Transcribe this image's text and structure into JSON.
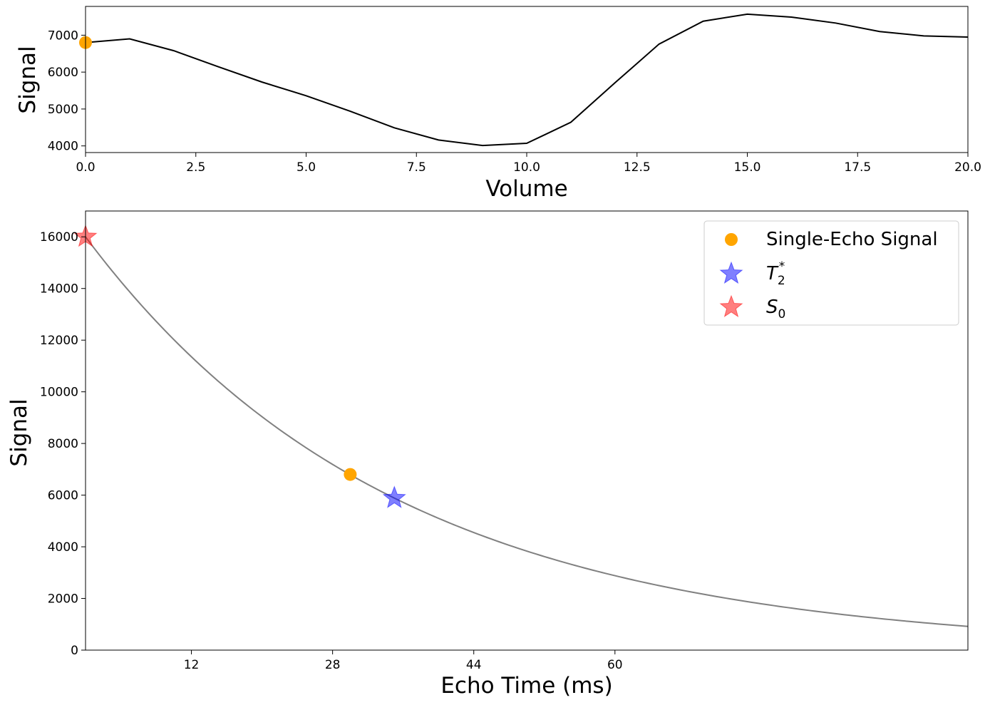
{
  "chart_data": [
    {
      "type": "line",
      "xlabel": "Volume",
      "ylabel": "Signal",
      "xlim": [
        0,
        20
      ],
      "ylim": [
        3820,
        7780
      ],
      "xticks": [
        0,
        2.5,
        5,
        7.5,
        10,
        12.5,
        15,
        17.5,
        20
      ],
      "xtick_labels": [
        "0.0",
        "2.5",
        "5.0",
        "7.5",
        "10.0",
        "12.5",
        "15.0",
        "17.5",
        "20.0"
      ],
      "yticks": [
        4000,
        5000,
        6000,
        7000
      ],
      "ytick_labels": [
        "4000",
        "5000",
        "6000",
        "7000"
      ],
      "grid": false,
      "series": [
        {
          "color": "#000000",
          "x": [
            0,
            1,
            2,
            3,
            4,
            5,
            6,
            7,
            8,
            9,
            10,
            11,
            12,
            13,
            14,
            15,
            16,
            17,
            18,
            19,
            20
          ],
          "y": [
            6800,
            6900,
            6580,
            6150,
            5730,
            5360,
            4940,
            4490,
            4160,
            4010,
            4070,
            4640,
            5710,
            6760,
            7380,
            7570,
            7490,
            7330,
            7100,
            6980,
            6950
          ]
        }
      ],
      "highlight_point": {
        "x": 0,
        "y": 6800,
        "color": "#ffa500"
      }
    },
    {
      "type": "line",
      "xlabel": "Echo Time (ms)",
      "ylabel": "Signal",
      "xlim": [
        0,
        100
      ],
      "ylim": [
        0,
        17000
      ],
      "xticks": [
        12,
        28,
        44,
        60
      ],
      "xtick_labels": [
        "12",
        "28",
        "44",
        "60"
      ],
      "yticks": [
        0,
        2000,
        4000,
        6000,
        8000,
        10000,
        12000,
        14000,
        16000
      ],
      "ytick_labels": [
        "0",
        "2000",
        "4000",
        "6000",
        "8000",
        "10000",
        "12000",
        "14000",
        "16000"
      ],
      "grid": false,
      "curve": {
        "model": "S0 * exp(-TE / T2star)",
        "S0": 16000,
        "T2star": 35,
        "color": "#808080"
      },
      "points": [
        {
          "label": "Single-Echo Signal",
          "marker": "circle",
          "x": 30,
          "y": 6800,
          "color": "#ffa500",
          "opacity": 1
        },
        {
          "label": "T",
          "sub": "2",
          "sup": "*",
          "marker": "star",
          "x": 35,
          "y": 5886,
          "color": "#0000ff",
          "opacity": 0.5
        },
        {
          "label": "S",
          "sub": "0",
          "sup": "",
          "marker": "star",
          "x": 0,
          "y": 16000,
          "color": "#ff0000",
          "opacity": 0.5
        }
      ],
      "legend": {
        "placement": "upper right"
      }
    }
  ]
}
